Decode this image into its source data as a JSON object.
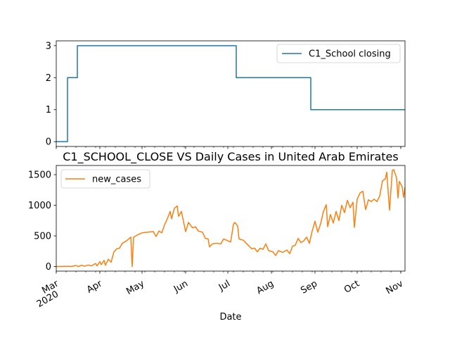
{
  "chart_data": [
    {
      "type": "line",
      "title": "",
      "xlabel": "",
      "ylabel": "",
      "ylim": [
        -0.15,
        3.15
      ],
      "yticks": [
        0,
        1,
        2,
        3
      ],
      "grid": false,
      "legend_position": "upper-right",
      "series": [
        {
          "name": "C1_School closing",
          "color": "#1f77b4",
          "step": true,
          "points": [
            {
              "x": "2020-03-01",
              "y": 0
            },
            {
              "x": "2020-03-09",
              "y": 2
            },
            {
              "x": "2020-03-16",
              "y": 3
            },
            {
              "x": "2020-07-07",
              "y": 2
            },
            {
              "x": "2020-08-29",
              "y": 1
            },
            {
              "x": "2020-11-04",
              "y": 1
            }
          ]
        }
      ]
    },
    {
      "type": "line",
      "title": "C1_SCHOOL_CLOSE VS Daily Cases in United Arab Emirates",
      "xlabel": "Date",
      "ylabel": "",
      "ylim": [
        -75,
        1650
      ],
      "yticks": [
        0,
        500,
        1000,
        1500
      ],
      "grid": false,
      "legend_position": "upper-left",
      "series": [
        {
          "name": "new_cases",
          "color": "#ff7f0e",
          "points": [
            {
              "x": "2020-03-01",
              "y": 0
            },
            {
              "x": "2020-03-07",
              "y": 2
            },
            {
              "x": "2020-03-12",
              "y": 3
            },
            {
              "x": "2020-03-15",
              "y": 15
            },
            {
              "x": "2020-03-17",
              "y": 0
            },
            {
              "x": "2020-03-19",
              "y": 20
            },
            {
              "x": "2020-03-21",
              "y": 5
            },
            {
              "x": "2020-03-24",
              "y": 25
            },
            {
              "x": "2020-03-26",
              "y": 10
            },
            {
              "x": "2020-03-29",
              "y": 50
            },
            {
              "x": "2020-03-30",
              "y": 10
            },
            {
              "x": "2020-04-01",
              "y": 80
            },
            {
              "x": "2020-04-02",
              "y": 30
            },
            {
              "x": "2020-04-04",
              "y": 100
            },
            {
              "x": "2020-04-05",
              "y": 20
            },
            {
              "x": "2020-04-07",
              "y": 120
            },
            {
              "x": "2020-04-09",
              "y": 70
            },
            {
              "x": "2020-04-11",
              "y": 240
            },
            {
              "x": "2020-04-13",
              "y": 290
            },
            {
              "x": "2020-04-15",
              "y": 300
            },
            {
              "x": "2020-04-17",
              "y": 380
            },
            {
              "x": "2020-04-20",
              "y": 420
            },
            {
              "x": "2020-04-23",
              "y": 480
            },
            {
              "x": "2020-04-24",
              "y": 0
            },
            {
              "x": "2020-04-25",
              "y": 480
            },
            {
              "x": "2020-04-28",
              "y": 520
            },
            {
              "x": "2020-05-01",
              "y": 550
            },
            {
              "x": "2020-05-05",
              "y": 560
            },
            {
              "x": "2020-05-09",
              "y": 570
            },
            {
              "x": "2020-05-11",
              "y": 490
            },
            {
              "x": "2020-05-13",
              "y": 580
            },
            {
              "x": "2020-05-15",
              "y": 550
            },
            {
              "x": "2020-05-17",
              "y": 680
            },
            {
              "x": "2020-05-19",
              "y": 780
            },
            {
              "x": "2020-05-21",
              "y": 900
            },
            {
              "x": "2020-05-22",
              "y": 780
            },
            {
              "x": "2020-05-24",
              "y": 950
            },
            {
              "x": "2020-05-26",
              "y": 990
            },
            {
              "x": "2020-05-27",
              "y": 820
            },
            {
              "x": "2020-05-29",
              "y": 900
            },
            {
              "x": "2020-06-01",
              "y": 570
            },
            {
              "x": "2020-06-03",
              "y": 720
            },
            {
              "x": "2020-06-06",
              "y": 630
            },
            {
              "x": "2020-06-08",
              "y": 650
            },
            {
              "x": "2020-06-10",
              "y": 580
            },
            {
              "x": "2020-06-13",
              "y": 560
            },
            {
              "x": "2020-06-15",
              "y": 460
            },
            {
              "x": "2020-06-17",
              "y": 450
            },
            {
              "x": "2020-06-18",
              "y": 320
            },
            {
              "x": "2020-06-20",
              "y": 370
            },
            {
              "x": "2020-06-23",
              "y": 380
            },
            {
              "x": "2020-06-26",
              "y": 370
            },
            {
              "x": "2020-06-28",
              "y": 450
            },
            {
              "x": "2020-07-01",
              "y": 420
            },
            {
              "x": "2020-07-03",
              "y": 400
            },
            {
              "x": "2020-07-05",
              "y": 690
            },
            {
              "x": "2020-07-06",
              "y": 720
            },
            {
              "x": "2020-07-08",
              "y": 660
            },
            {
              "x": "2020-07-09",
              "y": 450
            },
            {
              "x": "2020-07-12",
              "y": 430
            },
            {
              "x": "2020-07-15",
              "y": 360
            },
            {
              "x": "2020-07-18",
              "y": 290
            },
            {
              "x": "2020-07-20",
              "y": 300
            },
            {
              "x": "2020-07-22",
              "y": 240
            },
            {
              "x": "2020-07-24",
              "y": 300
            },
            {
              "x": "2020-07-26",
              "y": 280
            },
            {
              "x": "2020-07-28",
              "y": 370
            },
            {
              "x": "2020-07-30",
              "y": 260
            },
            {
              "x": "2020-08-02",
              "y": 240
            },
            {
              "x": "2020-08-04",
              "y": 180
            },
            {
              "x": "2020-08-06",
              "y": 260
            },
            {
              "x": "2020-08-09",
              "y": 230
            },
            {
              "x": "2020-08-12",
              "y": 270
            },
            {
              "x": "2020-08-14",
              "y": 210
            },
            {
              "x": "2020-08-16",
              "y": 330
            },
            {
              "x": "2020-08-18",
              "y": 350
            },
            {
              "x": "2020-08-20",
              "y": 460
            },
            {
              "x": "2020-08-22",
              "y": 390
            },
            {
              "x": "2020-08-24",
              "y": 420
            },
            {
              "x": "2020-08-26",
              "y": 480
            },
            {
              "x": "2020-08-28",
              "y": 380
            },
            {
              "x": "2020-08-30",
              "y": 580
            },
            {
              "x": "2020-09-01",
              "y": 740
            },
            {
              "x": "2020-09-03",
              "y": 560
            },
            {
              "x": "2020-09-05",
              "y": 700
            },
            {
              "x": "2020-09-07",
              "y": 900
            },
            {
              "x": "2020-09-09",
              "y": 1010
            },
            {
              "x": "2020-09-10",
              "y": 650
            },
            {
              "x": "2020-09-12",
              "y": 850
            },
            {
              "x": "2020-09-14",
              "y": 710
            },
            {
              "x": "2020-09-16",
              "y": 900
            },
            {
              "x": "2020-09-18",
              "y": 750
            },
            {
              "x": "2020-09-20",
              "y": 1000
            },
            {
              "x": "2020-09-22",
              "y": 880
            },
            {
              "x": "2020-09-24",
              "y": 1080
            },
            {
              "x": "2020-09-26",
              "y": 960
            },
            {
              "x": "2020-09-28",
              "y": 1050
            },
            {
              "x": "2020-09-29",
              "y": 640
            },
            {
              "x": "2020-10-01",
              "y": 1100
            },
            {
              "x": "2020-10-03",
              "y": 1200
            },
            {
              "x": "2020-10-05",
              "y": 1230
            },
            {
              "x": "2020-10-07",
              "y": 930
            },
            {
              "x": "2020-10-09",
              "y": 1090
            },
            {
              "x": "2020-10-11",
              "y": 1060
            },
            {
              "x": "2020-10-13",
              "y": 1100
            },
            {
              "x": "2020-10-15",
              "y": 1060
            },
            {
              "x": "2020-10-17",
              "y": 1150
            },
            {
              "x": "2020-10-19",
              "y": 1400
            },
            {
              "x": "2020-10-21",
              "y": 1430
            },
            {
              "x": "2020-10-22",
              "y": 1540
            },
            {
              "x": "2020-10-24",
              "y": 920
            },
            {
              "x": "2020-10-26",
              "y": 1570
            },
            {
              "x": "2020-10-27",
              "y": 1580
            },
            {
              "x": "2020-10-29",
              "y": 1450
            },
            {
              "x": "2020-10-30",
              "y": 1120
            },
            {
              "x": "2020-10-31",
              "y": 1390
            },
            {
              "x": "2020-11-02",
              "y": 1300
            },
            {
              "x": "2020-11-03",
              "y": 1130
            },
            {
              "x": "2020-11-04",
              "y": 1290
            }
          ]
        }
      ]
    }
  ],
  "x_axis": {
    "range": [
      "2020-03-01",
      "2020-11-04"
    ],
    "major_ticks": [
      {
        "x": "2020-03-01",
        "label": "Mar",
        "sublabel": "2020"
      },
      {
        "x": "2020-04-01",
        "label": "Apr",
        "sublabel": ""
      },
      {
        "x": "2020-05-01",
        "label": "May",
        "sublabel": ""
      },
      {
        "x": "2020-06-01",
        "label": "Jun",
        "sublabel": ""
      },
      {
        "x": "2020-07-01",
        "label": "Jul",
        "sublabel": ""
      },
      {
        "x": "2020-08-01",
        "label": "Aug",
        "sublabel": ""
      },
      {
        "x": "2020-09-01",
        "label": "Sep",
        "sublabel": ""
      },
      {
        "x": "2020-10-01",
        "label": "Oct",
        "sublabel": ""
      },
      {
        "x": "2020-11-01",
        "label": "Nov",
        "sublabel": ""
      }
    ]
  }
}
